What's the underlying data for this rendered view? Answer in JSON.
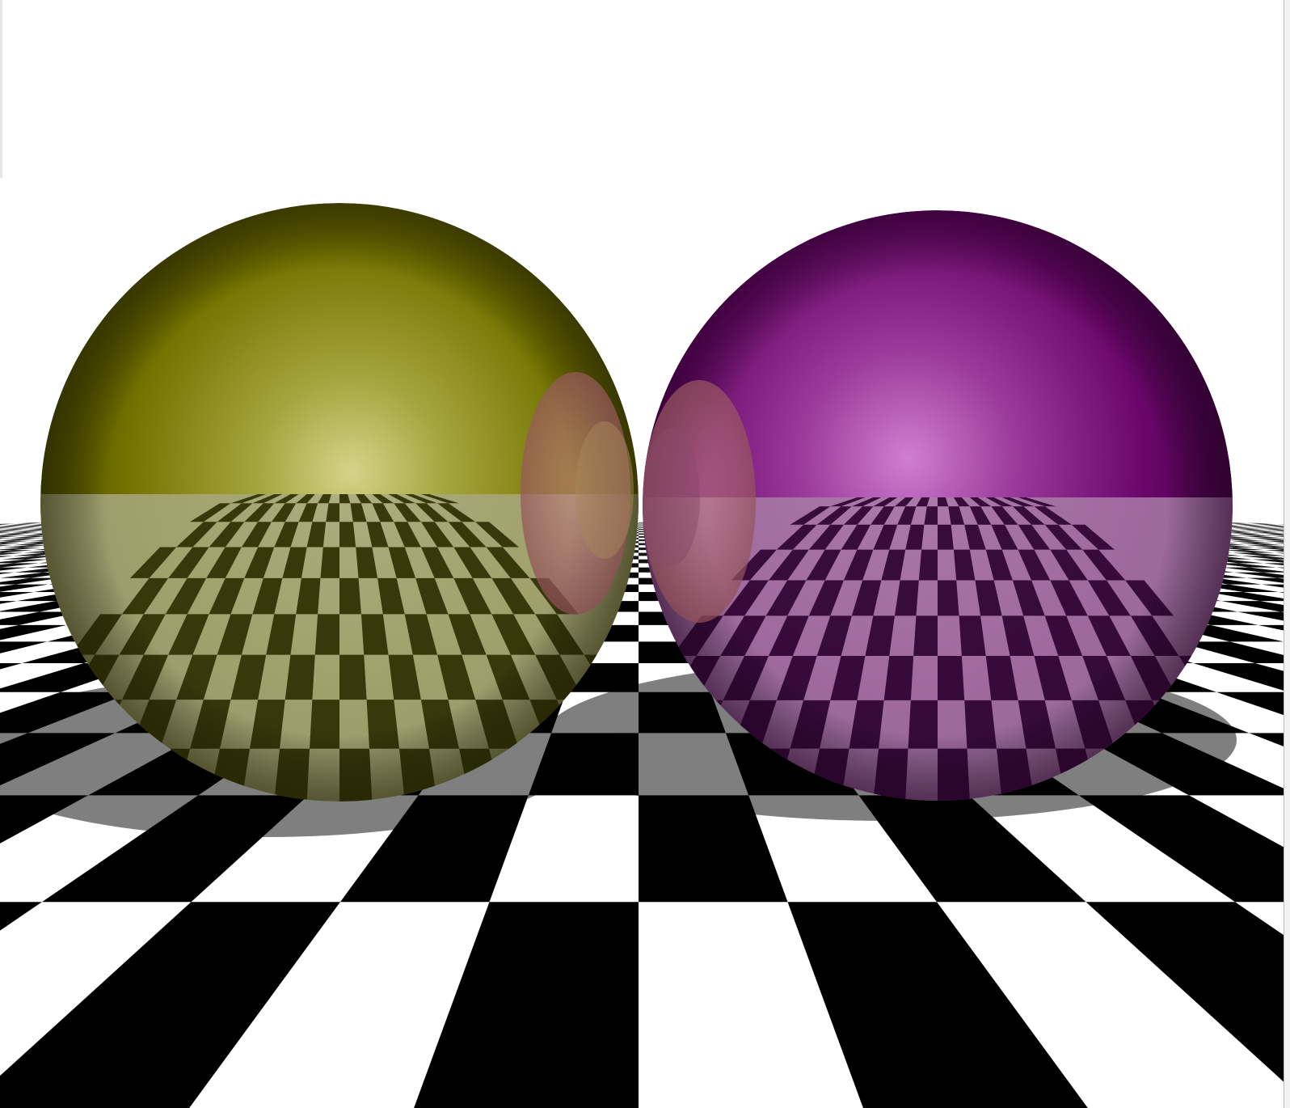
{
  "scene": {
    "background_color": "#ffffff",
    "floor": {
      "pattern": "checkerboard",
      "dark_color": "#000000",
      "light_color": "#ffffff",
      "shadow_color": "#7a7a7a"
    },
    "spheres": [
      {
        "name": "olive-sphere",
        "base_color": "#6f6f00",
        "highlight_color": "#e6e69a",
        "reflection_dark": "#2c2c00",
        "reflection_light": "#a8a880"
      },
      {
        "name": "purple-sphere",
        "base_color": "#6a0a6a",
        "highlight_color": "#d27ed2",
        "reflection_dark": "#2b0030",
        "reflection_light": "#a87ca8"
      }
    ]
  }
}
